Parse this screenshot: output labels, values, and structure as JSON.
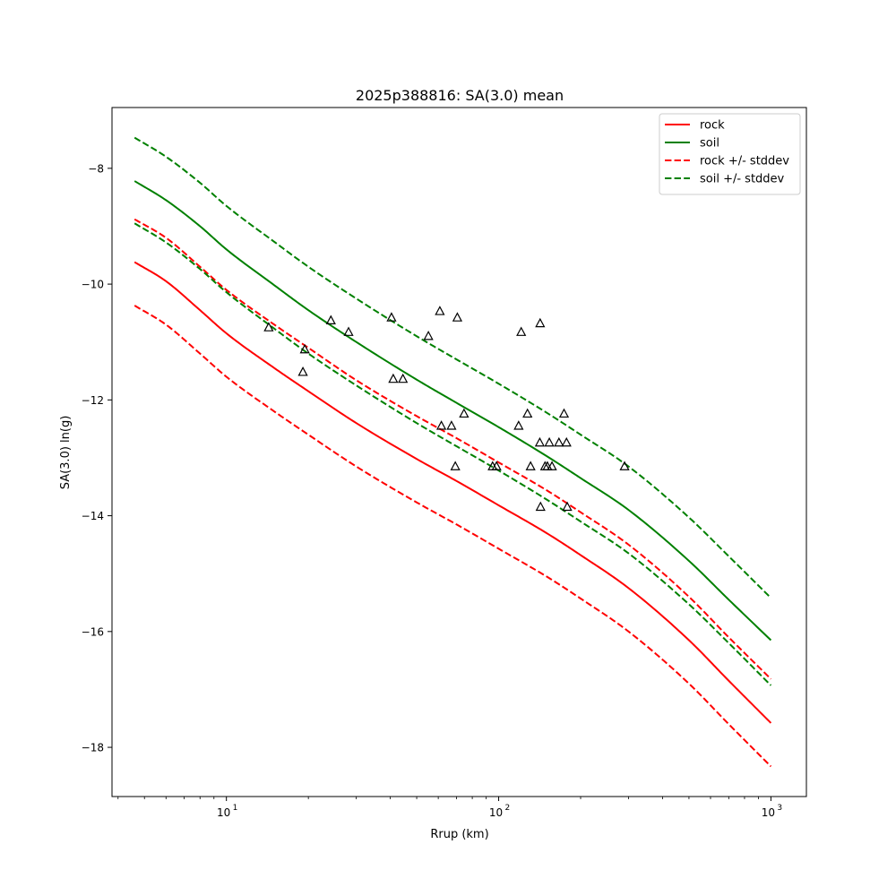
{
  "chart_data": {
    "type": "line",
    "title": "2025p388816: SA(3.0) mean",
    "xlabel": "Rrup (km)",
    "ylabel": "SA(3.0) ln(g)",
    "xscale": "log",
    "xlim": [
      3.8,
      1350
    ],
    "ylim": [
      -18.85,
      -6.95
    ],
    "x_ticks": [
      {
        "value": 10,
        "label": "10"
      },
      {
        "value": 100,
        "label": "10"
      },
      {
        "value": 1000,
        "label": "10"
      }
    ],
    "x_tick_exponents": [
      "1",
      "2",
      "3"
    ],
    "y_ticks": [
      {
        "value": -8,
        "label": "−8"
      },
      {
        "value": -10,
        "label": "−10"
      },
      {
        "value": -12,
        "label": "−12"
      },
      {
        "value": -14,
        "label": "−14"
      },
      {
        "value": -16,
        "label": "−16"
      },
      {
        "value": -18,
        "label": "−18"
      }
    ],
    "grid": false,
    "legend_position": "top-right",
    "x": [
      4.6,
      6,
      8,
      10,
      15,
      20,
      30,
      50,
      70,
      100,
      150,
      200,
      300,
      500,
      700,
      1000
    ],
    "series": [
      {
        "name": "rock",
        "color": "#ff0000",
        "style": "solid",
        "values": [
          -9.62,
          -9.95,
          -10.45,
          -10.85,
          -11.45,
          -11.85,
          -12.4,
          -13.02,
          -13.4,
          -13.82,
          -14.3,
          -14.68,
          -15.25,
          -16.15,
          -16.85,
          -17.58
        ]
      },
      {
        "name": "soil",
        "color": "#008000",
        "style": "solid",
        "values": [
          -8.22,
          -8.55,
          -9.0,
          -9.4,
          -10.02,
          -10.45,
          -11.0,
          -11.65,
          -12.05,
          -12.47,
          -12.97,
          -13.35,
          -13.9,
          -14.78,
          -15.45,
          -16.15
        ]
      },
      {
        "name": "rock +/- stddev",
        "color": "#ff0000",
        "style": "dashed",
        "values": [
          -8.88,
          -9.2,
          -9.7,
          -10.1,
          -10.7,
          -11.1,
          -11.66,
          -12.28,
          -12.66,
          -13.08,
          -13.56,
          -13.94,
          -14.5,
          -15.4,
          -16.1,
          -16.82
        ]
      },
      {
        "name": "",
        "color": "#ff0000",
        "style": "dashed",
        "values": [
          -10.37,
          -10.7,
          -11.2,
          -11.6,
          -12.2,
          -12.6,
          -13.15,
          -13.77,
          -14.15,
          -14.57,
          -15.05,
          -15.43,
          -16.0,
          -16.9,
          -17.6,
          -18.33
        ]
      },
      {
        "name": "soil +/- stddev",
        "color": "#008000",
        "style": "dashed",
        "values": [
          -7.47,
          -7.8,
          -8.25,
          -8.65,
          -9.27,
          -9.7,
          -10.25,
          -10.9,
          -11.3,
          -11.72,
          -12.22,
          -12.6,
          -13.15,
          -14.03,
          -14.7,
          -15.42
        ]
      },
      {
        "name": "",
        "color": "#008000",
        "style": "dashed",
        "values": [
          -8.95,
          -9.28,
          -9.74,
          -10.14,
          -10.77,
          -11.2,
          -11.75,
          -12.4,
          -12.8,
          -13.22,
          -13.72,
          -14.1,
          -14.65,
          -15.53,
          -16.2,
          -16.93
        ]
      }
    ],
    "observations": {
      "marker": "triangle",
      "points": [
        [
          14.3,
          -10.75
        ],
        [
          19.1,
          -11.52
        ],
        [
          19.4,
          -11.13
        ],
        [
          24.2,
          -10.63
        ],
        [
          28.1,
          -10.83
        ],
        [
          40.4,
          -10.58
        ],
        [
          41.0,
          -11.64
        ],
        [
          44.5,
          -11.64
        ],
        [
          55.2,
          -10.9
        ],
        [
          60.8,
          -10.47
        ],
        [
          61.6,
          -12.45
        ],
        [
          67.1,
          -12.45
        ],
        [
          69.3,
          -13.15
        ],
        [
          70.5,
          -10.58
        ],
        [
          74.6,
          -12.24
        ],
        [
          95.0,
          -13.15
        ],
        [
          98.2,
          -13.15
        ],
        [
          118.4,
          -12.45
        ],
        [
          121.0,
          -10.83
        ],
        [
          127.6,
          -12.24
        ],
        [
          131.0,
          -13.15
        ],
        [
          141.6,
          -12.74
        ],
        [
          142.0,
          -10.68
        ],
        [
          142.5,
          -13.85
        ],
        [
          148.0,
          -13.15
        ],
        [
          151.0,
          -13.15
        ],
        [
          153.5,
          -12.74
        ],
        [
          157.0,
          -13.15
        ],
        [
          166.5,
          -12.74
        ],
        [
          173.8,
          -12.24
        ],
        [
          177.5,
          -12.74
        ],
        [
          178.6,
          -13.85
        ],
        [
          290.0,
          -13.15
        ]
      ]
    }
  }
}
